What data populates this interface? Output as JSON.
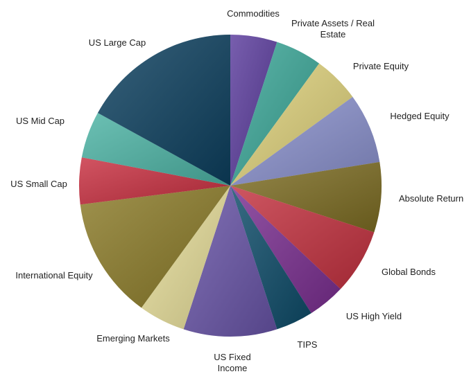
{
  "chart_data": {
    "type": "pie",
    "categories": [
      "Commodities",
      "Private Assets / Real Estate",
      "Private Equity",
      "Hedged Equity",
      "Absolute Return",
      "Global Bonds",
      "US High Yield",
      "TIPS",
      "US Fixed Income",
      "Emerging Markets",
      "International Equity",
      "US Small Cap",
      "US Mid Cap",
      "US Large Cap"
    ],
    "values": [
      5,
      5,
      5,
      7.5,
      7.5,
      7,
      4,
      4,
      10,
      5,
      13,
      5,
      5,
      17
    ],
    "colors": [
      "#5a3b9c",
      "#3aa697",
      "#ddd07a",
      "#8990cc",
      "#7c6c22",
      "#c3313f",
      "#7a2e90",
      "#0d4b68",
      "#6753a6",
      "#e6dd99",
      "#8a7a27",
      "#c82f40",
      "#4cb3a4",
      "#0c3f5e"
    ]
  }
}
